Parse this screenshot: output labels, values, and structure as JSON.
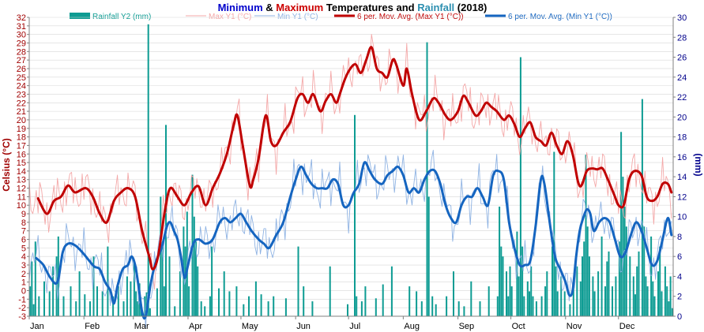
{
  "colors": {
    "title_min": "#0000cc",
    "title_max": "#cc0000",
    "title_rain": "#2c8fb0",
    "title_text": "#000000",
    "left_axis": "#a00000",
    "right_axis": "#00008b",
    "grid": "#d8d8d8",
    "rain": "#0e9c93",
    "max_raw": "#f4a8a8",
    "min_raw": "#8fb3e3",
    "max_avg": "#c00000",
    "min_avg": "#1565c0"
  },
  "chart_data": {
    "type": "line",
    "title": {
      "part1": "Minimum",
      "part2": " & ",
      "part3": "Maximum",
      "part4": " Temperatures and ",
      "part5": "Rainfall",
      "part6": " (2018)"
    },
    "ylabel": "Celsius (°C)",
    "y2label": "(mm)",
    "ylim": [
      -3,
      32
    ],
    "y2lim": [
      0,
      30
    ],
    "y_ticks": [
      -3,
      -2,
      -1,
      0,
      1,
      2,
      3,
      4,
      5,
      6,
      7,
      8,
      9,
      10,
      11,
      12,
      13,
      14,
      15,
      16,
      17,
      18,
      19,
      20,
      21,
      22,
      23,
      24,
      25,
      26,
      27,
      28,
      29,
      30,
      31,
      32
    ],
    "y2_ticks": [
      0,
      2,
      4,
      6,
      8,
      10,
      12,
      14,
      16,
      18,
      20,
      22,
      24,
      26,
      28,
      30
    ],
    "x_months": [
      "Jan",
      "Feb",
      "Mar",
      "Apr",
      "May",
      "Jun",
      "Jul",
      "Aug",
      "Sep",
      "Oct",
      "Nov",
      "Dec"
    ],
    "month_start_days": [
      0,
      31,
      59,
      90,
      120,
      151,
      181,
      212,
      243,
      273,
      304,
      334
    ],
    "days_in_year": 365,
    "grid": true,
    "legend": {
      "position": "top",
      "items": [
        {
          "key": "rain",
          "label": "Rainfall Y2 (mm)",
          "kind": "bar"
        },
        {
          "key": "max_raw",
          "label": "Max Y1 (°C)",
          "kind": "thin"
        },
        {
          "key": "min_raw",
          "label": "Min Y1 (°C)",
          "kind": "thin"
        },
        {
          "key": "max_avg",
          "label": "6 per. Mov. Avg. (Max Y1 (°C))",
          "kind": "thick"
        },
        {
          "key": "min_avg",
          "label": "6 per. Mov. Avg. (Min Y1 (°C))",
          "kind": "thick"
        }
      ]
    },
    "max_avg_knots": [
      [
        5,
        10.8
      ],
      [
        10,
        9
      ],
      [
        14,
        10.5
      ],
      [
        18,
        11
      ],
      [
        22,
        12.3
      ],
      [
        26,
        11.5
      ],
      [
        32,
        12
      ],
      [
        36,
        11
      ],
      [
        40,
        9
      ],
      [
        44,
        8
      ],
      [
        48,
        10.5
      ],
      [
        52,
        11.5
      ],
      [
        56,
        12
      ],
      [
        60,
        11
      ],
      [
        64,
        7
      ],
      [
        68,
        4
      ],
      [
        70,
        2.5
      ],
      [
        73,
        4
      ],
      [
        77,
        9.5
      ],
      [
        80,
        12
      ],
      [
        84,
        11
      ],
      [
        88,
        10
      ],
      [
        92,
        11.5
      ],
      [
        96,
        12.2
      ],
      [
        100,
        10
      ],
      [
        104,
        12
      ],
      [
        108,
        13.7
      ],
      [
        112,
        16
      ],
      [
        116,
        19.5
      ],
      [
        118,
        20.5
      ],
      [
        121,
        17
      ],
      [
        125,
        12.3
      ],
      [
        127,
        13
      ],
      [
        130,
        15.5
      ],
      [
        134,
        20.5
      ],
      [
        137,
        17.5
      ],
      [
        140,
        17
      ],
      [
        144,
        18.5
      ],
      [
        148,
        19.8
      ],
      [
        152,
        22.5
      ],
      [
        155,
        23
      ],
      [
        158,
        22
      ],
      [
        161,
        23
      ],
      [
        165,
        21
      ],
      [
        168,
        22.2
      ],
      [
        171,
        23
      ],
      [
        174,
        22
      ],
      [
        176,
        23
      ],
      [
        179,
        24.8
      ],
      [
        182,
        26
      ],
      [
        185,
        26.5
      ],
      [
        188,
        25.5
      ],
      [
        191,
        27
      ],
      [
        194,
        28.5
      ],
      [
        197,
        26
      ],
      [
        200,
        25.5
      ],
      [
        203,
        25
      ],
      [
        206,
        27
      ],
      [
        208,
        26.5
      ],
      [
        212,
        24
      ],
      [
        214,
        26
      ],
      [
        217,
        23
      ],
      [
        221,
        20
      ],
      [
        225,
        21
      ],
      [
        229,
        22.5
      ],
      [
        232,
        22
      ],
      [
        236,
        20.5
      ],
      [
        239,
        20
      ],
      [
        243,
        21
      ],
      [
        246,
        22.8
      ],
      [
        249,
        22
      ],
      [
        253,
        20.5
      ],
      [
        256,
        21
      ],
      [
        259,
        22
      ],
      [
        262,
        21.5
      ],
      [
        265,
        21
      ],
      [
        269,
        20
      ],
      [
        272,
        20.5
      ],
      [
        275,
        19.5
      ],
      [
        278,
        18
      ],
      [
        281,
        19
      ],
      [
        284,
        19.7
      ],
      [
        287,
        18
      ],
      [
        290,
        17.5
      ],
      [
        293,
        17
      ],
      [
        296,
        18.5
      ],
      [
        299,
        17
      ],
      [
        302,
        16
      ],
      [
        305,
        17.5
      ],
      [
        308,
        16
      ],
      [
        311,
        12.8
      ],
      [
        313,
        12.3
      ],
      [
        316,
        14
      ],
      [
        319,
        14.3
      ],
      [
        322,
        14.2
      ],
      [
        325,
        14.3
      ],
      [
        328,
        13
      ],
      [
        332,
        11
      ],
      [
        334,
        10
      ],
      [
        337,
        10
      ],
      [
        340,
        13
      ],
      [
        343,
        14
      ],
      [
        347,
        13.5
      ],
      [
        350,
        11
      ],
      [
        353,
        10.5
      ],
      [
        356,
        11
      ],
      [
        359,
        12.5
      ],
      [
        362,
        12.5
      ],
      [
        364,
        11.5
      ]
    ],
    "min_avg_knots": [
      [
        4,
        3.8
      ],
      [
        8,
        3
      ],
      [
        12,
        1.5
      ],
      [
        16,
        1
      ],
      [
        19,
        4.5
      ],
      [
        22,
        5.5
      ],
      [
        26,
        5.3
      ],
      [
        30,
        4.5
      ],
      [
        34,
        3.5
      ],
      [
        37,
        2.8
      ],
      [
        40,
        2.5
      ],
      [
        43,
        1
      ],
      [
        46,
        0
      ],
      [
        48,
        -1.5
      ],
      [
        50,
        0.5
      ],
      [
        53,
        2.5
      ],
      [
        56,
        3
      ],
      [
        58,
        4
      ],
      [
        60,
        3
      ],
      [
        62,
        0.5
      ],
      [
        64,
        -2.5
      ],
      [
        66,
        -3
      ],
      [
        69,
        1
      ],
      [
        72,
        3.5
      ],
      [
        75,
        5
      ],
      [
        78,
        7.5
      ],
      [
        80,
        8
      ],
      [
        82,
        7
      ],
      [
        84,
        6
      ],
      [
        86,
        4
      ],
      [
        88,
        1.5
      ],
      [
        90,
        3
      ],
      [
        93,
        5.5
      ],
      [
        96,
        6
      ],
      [
        100,
        5.5
      ],
      [
        104,
        6
      ],
      [
        108,
        8
      ],
      [
        111,
        8.5
      ],
      [
        114,
        8
      ],
      [
        117,
        8.5
      ],
      [
        120,
        9
      ],
      [
        123,
        8
      ],
      [
        126,
        7
      ],
      [
        130,
        6
      ],
      [
        133,
        5.5
      ],
      [
        136,
        5
      ],
      [
        140,
        6.5
      ],
      [
        144,
        8
      ],
      [
        148,
        11
      ],
      [
        151,
        13
      ],
      [
        154,
        14.5
      ],
      [
        157,
        13.5
      ],
      [
        160,
        12.5
      ],
      [
        163,
        12
      ],
      [
        166,
        12
      ],
      [
        169,
        12
      ],
      [
        172,
        13
      ],
      [
        175,
        12.5
      ],
      [
        178,
        10
      ],
      [
        181,
        10
      ],
      [
        184,
        11.5
      ],
      [
        187,
        12.5
      ],
      [
        190,
        15
      ],
      [
        193,
        14
      ],
      [
        196,
        13
      ],
      [
        200,
        12.5
      ],
      [
        203,
        13.5
      ],
      [
        206,
        14
      ],
      [
        209,
        14.5
      ],
      [
        212,
        13.5
      ],
      [
        215,
        11.5
      ],
      [
        218,
        12
      ],
      [
        221,
        11.5
      ],
      [
        224,
        13
      ],
      [
        227,
        14
      ],
      [
        230,
        14
      ],
      [
        233,
        12.5
      ],
      [
        236,
        10
      ],
      [
        239,
        8.5
      ],
      [
        242,
        8
      ],
      [
        245,
        10
      ],
      [
        248,
        11
      ],
      [
        251,
        11
      ],
      [
        254,
        12
      ],
      [
        257,
        11
      ],
      [
        260,
        10
      ],
      [
        263,
        13.5
      ],
      [
        266,
        14
      ],
      [
        269,
        13
      ],
      [
        272,
        8
      ],
      [
        275,
        5
      ],
      [
        278,
        3
      ],
      [
        281,
        3
      ],
      [
        284,
        3.5
      ],
      [
        287,
        7.5
      ],
      [
        290,
        13
      ],
      [
        292,
        12.5
      ],
      [
        295,
        8
      ],
      [
        298,
        4
      ],
      [
        301,
        2.5
      ],
      [
        304,
        1
      ],
      [
        306,
        -0.5
      ],
      [
        308,
        0
      ],
      [
        310,
        4
      ],
      [
        312,
        7
      ],
      [
        314,
        8.5
      ],
      [
        316,
        9.5
      ],
      [
        318,
        9
      ],
      [
        320,
        7
      ],
      [
        323,
        8
      ],
      [
        326,
        8.5
      ],
      [
        329,
        8
      ],
      [
        332,
        6
      ],
      [
        335,
        4
      ],
      [
        338,
        4.5
      ],
      [
        341,
        6.5
      ],
      [
        344,
        8
      ],
      [
        347,
        7
      ],
      [
        350,
        5
      ],
      [
        353,
        3
      ],
      [
        356,
        3.5
      ],
      [
        359,
        6
      ],
      [
        362,
        8.5
      ],
      [
        364,
        6.5
      ]
    ],
    "rain_bars": [
      [
        0,
        3
      ],
      [
        1,
        5.5
      ],
      [
        2,
        1.2
      ],
      [
        3,
        7.5
      ],
      [
        5,
        2
      ],
      [
        8,
        3.5
      ],
      [
        11,
        2.5
      ],
      [
        13,
        5
      ],
      [
        15,
        6
      ],
      [
        16,
        8
      ],
      [
        19,
        2
      ],
      [
        23,
        3
      ],
      [
        26,
        1.5
      ],
      [
        28,
        4.5
      ],
      [
        31,
        2.2
      ],
      [
        34,
        1.5
      ],
      [
        36,
        6
      ],
      [
        38,
        3
      ],
      [
        41,
        2.5
      ],
      [
        44,
        7
      ],
      [
        47,
        2
      ],
      [
        50,
        3
      ],
      [
        53,
        1.5
      ],
      [
        55,
        4
      ],
      [
        57,
        3.5
      ],
      [
        59,
        5.5
      ],
      [
        60,
        2.5
      ],
      [
        61,
        1.5
      ],
      [
        62,
        3.3
      ],
      [
        63,
        1.2
      ],
      [
        65,
        2
      ],
      [
        66,
        2.4
      ],
      [
        67,
        29.3
      ],
      [
        68,
        0.8
      ],
      [
        72,
        2.8
      ],
      [
        74,
        12
      ],
      [
        75,
        7
      ],
      [
        76,
        3
      ],
      [
        77,
        19.2
      ],
      [
        79,
        6
      ],
      [
        82,
        1
      ],
      [
        85,
        4.5
      ],
      [
        87,
        9
      ],
      [
        88,
        7
      ],
      [
        89,
        10.5
      ],
      [
        90,
        3
      ],
      [
        92,
        14.2
      ],
      [
        93,
        10
      ],
      [
        94,
        7.5
      ],
      [
        95,
        5
      ],
      [
        97,
        1.5
      ],
      [
        99,
        1
      ],
      [
        102,
        2
      ],
      [
        103,
        7
      ],
      [
        107,
        2.8
      ],
      [
        110,
        4.5
      ],
      [
        113,
        2.5
      ],
      [
        117,
        3
      ],
      [
        121,
        1.2
      ],
      [
        124,
        2
      ],
      [
        128,
        3.5
      ],
      [
        131,
        2.2
      ],
      [
        135,
        1.5
      ],
      [
        138,
        2
      ],
      [
        145,
        1.8
      ],
      [
        152,
        7
      ],
      [
        155,
        3
      ],
      [
        160,
        1.5
      ],
      [
        170,
        5
      ],
      [
        180,
        1.2
      ],
      [
        184,
        20.2
      ],
      [
        185,
        2
      ],
      [
        188,
        1.5
      ],
      [
        190,
        3
      ],
      [
        196,
        1.8
      ],
      [
        200,
        3.2
      ],
      [
        205,
        5
      ],
      [
        215,
        3
      ],
      [
        219,
        2.5
      ],
      [
        222,
        1.5
      ],
      [
        225,
        27.5
      ],
      [
        226,
        12
      ],
      [
        228,
        2
      ],
      [
        230,
        1.2
      ],
      [
        236,
        2
      ],
      [
        240,
        4.5
      ],
      [
        243,
        1.5
      ],
      [
        246,
        1
      ],
      [
        250,
        3.5
      ],
      [
        255,
        1.5
      ],
      [
        260,
        3
      ],
      [
        265,
        2
      ],
      [
        266,
        11
      ],
      [
        267,
        7
      ],
      [
        268,
        6
      ],
      [
        270,
        4.5
      ],
      [
        271,
        2
      ],
      [
        272,
        5
      ],
      [
        273,
        3
      ],
      [
        276,
        8.5
      ],
      [
        277,
        4
      ],
      [
        278,
        26
      ],
      [
        279,
        7
      ],
      [
        280,
        2
      ],
      [
        282,
        3.5
      ],
      [
        283,
        2.5
      ],
      [
        284,
        5
      ],
      [
        285,
        2
      ],
      [
        287,
        1.5
      ],
      [
        290,
        2
      ],
      [
        292,
        3
      ],
      [
        293,
        4.5
      ],
      [
        296,
        7
      ],
      [
        297,
        16.5
      ],
      [
        298,
        5
      ],
      [
        299,
        2.5
      ],
      [
        301,
        4
      ],
      [
        303,
        2.5
      ],
      [
        306,
        1.2
      ],
      [
        308,
        3
      ],
      [
        310,
        5
      ],
      [
        312,
        3.5
      ],
      [
        313,
        6
      ],
      [
        314,
        7.5
      ],
      [
        315,
        16.2
      ],
      [
        316,
        9
      ],
      [
        317,
        6
      ],
      [
        319,
        4
      ],
      [
        320,
        2.5
      ],
      [
        322,
        4.5
      ],
      [
        324,
        8
      ],
      [
        326,
        3
      ],
      [
        327,
        5.5
      ],
      [
        328,
        6.5
      ],
      [
        330,
        3
      ],
      [
        332,
        4
      ],
      [
        334,
        7.5
      ],
      [
        335,
        18.5
      ],
      [
        336,
        14
      ],
      [
        337,
        11
      ],
      [
        338,
        9
      ],
      [
        340,
        6
      ],
      [
        342,
        4
      ],
      [
        343,
        2.2
      ],
      [
        344,
        5
      ],
      [
        345,
        6.5
      ],
      [
        347,
        21.8
      ],
      [
        348,
        9
      ],
      [
        349,
        4
      ],
      [
        350,
        3
      ],
      [
        352,
        8
      ],
      [
        353,
        3.5
      ],
      [
        354,
        2
      ],
      [
        356,
        4.5
      ],
      [
        357,
        7
      ],
      [
        358,
        2.5
      ],
      [
        360,
        5
      ],
      [
        361,
        3
      ],
      [
        362,
        1.5
      ],
      [
        363,
        4
      ],
      [
        364,
        0.8
      ]
    ]
  }
}
